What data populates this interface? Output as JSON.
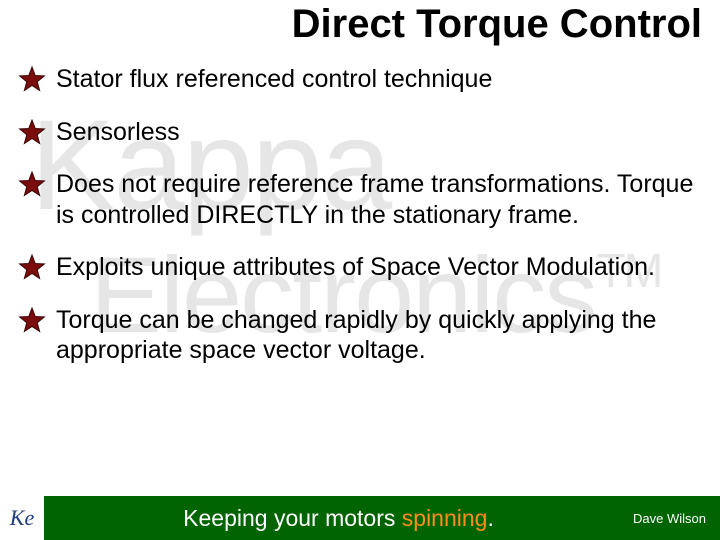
{
  "title": {
    "text": "Direct Torque Control",
    "fontsize": 40,
    "color": "#000000"
  },
  "watermark": {
    "line1": {
      "text": "Kappa",
      "color": "#e6e6e6"
    },
    "line2": {
      "text": "Electronics",
      "tm": "TM",
      "color": "#e6e6e6"
    }
  },
  "bullets": {
    "fontsize": 25,
    "color": "#000000",
    "items": [
      "Stator flux referenced control technique",
      "Sensorless",
      "Does not require reference frame transformations. Torque is controlled DIRECTLY in the stationary frame.",
      "Exploits unique attributes of Space Vector Modulation.",
      "Torque can be changed rapidly by quickly applying the appropriate space vector voltage."
    ],
    "star": {
      "fill": "#7a0c0c",
      "stroke": "#3a0505"
    }
  },
  "footer": {
    "background": "#006400",
    "logo": {
      "text": "Ke",
      "text_color": "#1f3d7a",
      "bg": "#ffffff"
    },
    "tagline": {
      "prefix": "Keeping your motors ",
      "highlight": "spinning",
      "suffix": ".",
      "color": "#ffffff",
      "highlight_color": "#ff8c1a",
      "fontsize": 23
    },
    "author": {
      "text": "Dave Wilson",
      "color": "#ffffff",
      "fontsize": 13
    }
  }
}
